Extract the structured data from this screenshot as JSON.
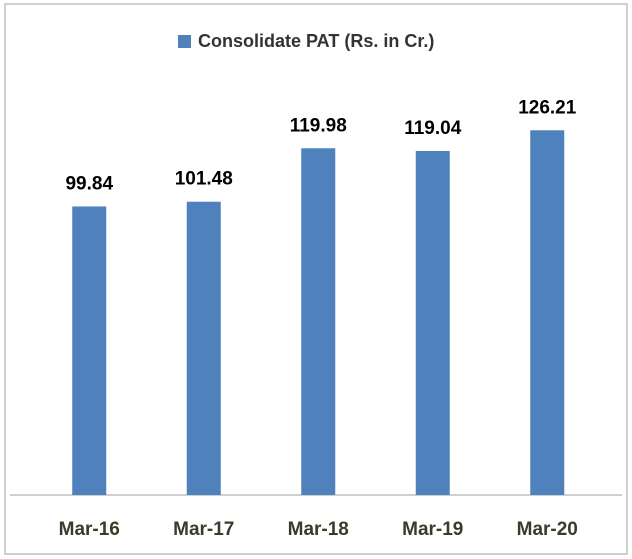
{
  "chart_data": {
    "type": "bar",
    "categories": [
      "Mar-16",
      "Mar-17",
      "Mar-18",
      "Mar-19",
      "Mar-20"
    ],
    "series": [
      {
        "name": "Consolidate PAT (Rs. in Cr.)",
        "color": "#4f81bd",
        "values": [
          99.84,
          101.48,
          119.98,
          119.04,
          126.21
        ]
      }
    ]
  }
}
